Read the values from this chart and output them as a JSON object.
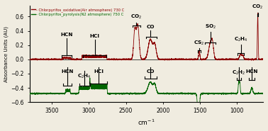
{
  "title_red": "- Chlorpyrifos_oxidative(Air atmosphere) 730 C",
  "title_green": "- Chlorpyrifos_pyrolysis(N2 atmosphere) 750 C",
  "xlabel": "cm$^{-1}$",
  "ylabel": "Absorbance Units (AU)",
  "xlim": [
    3800,
    650
  ],
  "ylim": [
    -0.6,
    0.75
  ],
  "red_color": "#8b0000",
  "green_color": "#006400",
  "background": "#f0ece0",
  "ann_red": [
    {
      "label": "HCN",
      "xm": 3300,
      "yt": 0.32,
      "bx": [
        3230,
        3370
      ],
      "yb": 0.06
    },
    {
      "label": "HCl",
      "xm": 2920,
      "yt": 0.3,
      "bx": [
        2760,
        3080
      ],
      "yb": 0.06
    },
    {
      "label": "CO$_2$",
      "xm": 2360,
      "yt": 0.54,
      "bx": [
        2300,
        2410
      ],
      "yb": 0.48
    },
    {
      "label": "CO",
      "xm": 2170,
      "yt": 0.43,
      "bx": [
        2080,
        2230
      ],
      "yb": 0.32
    },
    {
      "label": "SO$_2$",
      "xm": 1360,
      "yt": 0.41,
      "bx": [
        1290,
        1430
      ],
      "yb": 0.24
    },
    {
      "label": "CS$_2$",
      "xm": 1510,
      "yt": 0.18,
      "bx": [
        1495,
        1525
      ],
      "yb": 0.13
    },
    {
      "label": "C$_2$H$_4$",
      "xm": 950,
      "yt": 0.23,
      "bx": [
        905,
        995
      ],
      "yb": 0.09
    },
    {
      "label": "CO$_2$",
      "xm": 720,
      "yt": 0.68,
      "bx": [
        712,
        728
      ],
      "yb": 0.63
    }
  ],
  "ann_green": [
    {
      "label": "HCN",
      "xm": 3285,
      "yt": -0.14,
      "bx": [
        3230,
        3350
      ],
      "yb": -0.37
    },
    {
      "label": "C$_2$H$_4$",
      "xm": 3060,
      "yt": -0.19,
      "bx": [
        2985,
        3130
      ],
      "yb": -0.37
    },
    {
      "label": "HCl",
      "xm": 2870,
      "yt": -0.14,
      "bx": [
        2755,
        2995
      ],
      "yb": -0.34
    },
    {
      "label": "CO",
      "xm": 2170,
      "yt": -0.14,
      "bx": [
        2085,
        2245
      ],
      "yb": -0.27
    },
    {
      "label": "C$_2$H$_2$",
      "xm": 975,
      "yt": -0.14,
      "bx": [
        948,
        1005
      ],
      "yb": -0.29
    },
    {
      "label": "HCN",
      "xm": 800,
      "yt": -0.14,
      "bx": [
        762,
        838
      ],
      "yb": -0.29
    }
  ]
}
